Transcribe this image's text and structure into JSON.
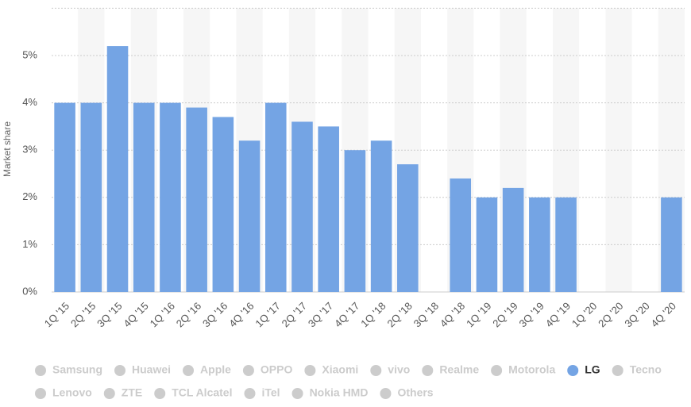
{
  "chart_data": {
    "type": "bar",
    "y_label": "Market share",
    "categories": [
      "1Q '15",
      "2Q '15",
      "3Q '15",
      "4Q '15",
      "1Q '16",
      "2Q '16",
      "3Q '16",
      "4Q '16",
      "1Q '17",
      "2Q '17",
      "3Q '17",
      "4Q '17",
      "1Q '18",
      "2Q '18",
      "3Q '18",
      "4Q '18",
      "1Q '19",
      "2Q '19",
      "3Q '19",
      "4Q '19",
      "1Q '20",
      "2Q '20",
      "3Q '20",
      "4Q '20"
    ],
    "ylim": [
      0,
      6
    ],
    "yticks": [
      {
        "value": 0,
        "label": "0%"
      },
      {
        "value": 1,
        "label": "1%"
      },
      {
        "value": 2,
        "label": "2%"
      },
      {
        "value": 3,
        "label": "3%"
      },
      {
        "value": 4,
        "label": "4%"
      },
      {
        "value": 5,
        "label": "5%"
      },
      6
    ],
    "grid": true,
    "series": [
      {
        "name": "Samsung",
        "visible": false
      },
      {
        "name": "Huawei",
        "visible": false
      },
      {
        "name": "Apple",
        "visible": false
      },
      {
        "name": "OPPO",
        "visible": false
      },
      {
        "name": "Xiaomi",
        "visible": false
      },
      {
        "name": "vivo",
        "visible": false
      },
      {
        "name": "Realme",
        "visible": false
      },
      {
        "name": "Motorola",
        "visible": false
      },
      {
        "name": "LG",
        "visible": true,
        "color": "#74a4e4",
        "values": [
          4,
          4,
          5.2,
          4,
          4,
          3.9,
          3.7,
          3.2,
          4,
          3.6,
          3.5,
          3,
          3.2,
          2.7,
          null,
          2.4,
          2,
          2.2,
          2,
          2,
          null,
          null,
          null,
          2
        ]
      },
      {
        "name": "Tecno",
        "visible": false
      },
      {
        "name": "Lenovo",
        "visible": false
      },
      {
        "name": "ZTE",
        "visible": false
      },
      {
        "name": "TCL Alcatel",
        "visible": false
      },
      {
        "name": "iTel",
        "visible": false
      },
      {
        "name": "Nokia HMD",
        "visible": false
      },
      {
        "name": "Others",
        "visible": false
      }
    ]
  }
}
